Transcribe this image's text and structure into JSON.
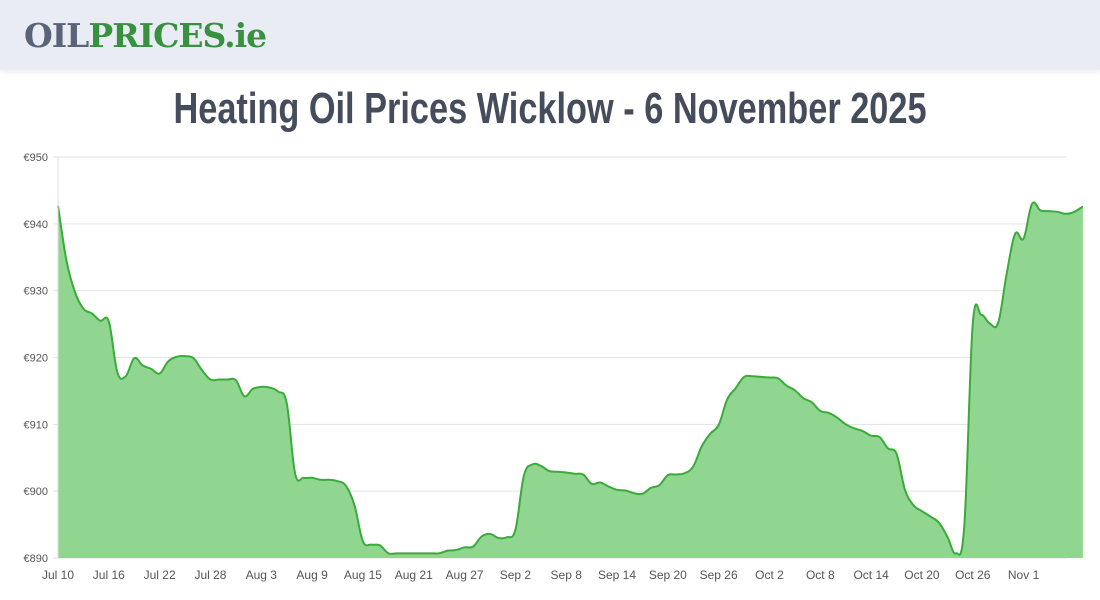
{
  "header": {
    "logo_part1": "OIL",
    "logo_part2": "PRICES.ie"
  },
  "page": {
    "title": "Heating Oil Prices Wicklow - 6 November 2025"
  },
  "colors": {
    "line": "#3aab3a",
    "fill": "#90d690",
    "grid": "#e3e3e3",
    "logo_dark": "#5a6478",
    "logo_green": "#37913f",
    "title": "#454d5c"
  },
  "chart_data": {
    "type": "area",
    "title": "Heating Oil Prices Wicklow - 6 November 2025",
    "xlabel": "",
    "ylabel": "",
    "ylim": [
      890,
      950
    ],
    "yticks": [
      "€890",
      "€900",
      "€910",
      "€920",
      "€930",
      "€940",
      "€950"
    ],
    "ytick_values": [
      890,
      900,
      910,
      920,
      930,
      940,
      950
    ],
    "xtick_labels": [
      "Jul 10",
      "Jul 16",
      "Jul 22",
      "Jul 28",
      "Aug 3",
      "Aug 9",
      "Aug 15",
      "Aug 21",
      "Aug 27",
      "Sep 2",
      "Sep 8",
      "Sep 14",
      "Sep 20",
      "Sep 26",
      "Oct 2",
      "Oct 8",
      "Oct 14",
      "Oct 20",
      "Oct 26",
      "Nov 1"
    ],
    "grid": true,
    "legend": "none",
    "start_date": "Jul 10",
    "end_date": "Nov 6",
    "currency": "€",
    "series": [
      {
        "name": "Heating Oil Price (Wicklow)",
        "values": [
          942.7,
          934.5,
          929.8,
          927.3,
          926.6,
          925.5,
          925.4,
          917.8,
          917.2,
          919.9,
          918.8,
          918.3,
          917.6,
          919.4,
          920.1,
          920.2,
          919.9,
          918.1,
          916.7,
          916.7,
          916.7,
          916.6,
          914.2,
          915.3,
          915.6,
          915.5,
          914.9,
          913.2,
          902.6,
          902.0,
          902.0,
          901.7,
          901.7,
          901.5,
          900.8,
          897.9,
          892.5,
          892.0,
          891.9,
          890.7,
          890.7,
          890.7,
          890.7,
          890.7,
          890.7,
          890.7,
          891.1,
          891.2,
          891.6,
          891.7,
          893.2,
          893.6,
          893.0,
          893.1,
          894.2,
          902.3,
          904.0,
          903.8,
          903.0,
          902.9,
          902.8,
          902.6,
          902.5,
          901.1,
          901.3,
          900.7,
          900.2,
          900.1,
          899.7,
          899.6,
          900.5,
          900.9,
          902.4,
          902.5,
          902.7,
          903.7,
          906.7,
          908.6,
          909.9,
          913.7,
          915.4,
          917.1,
          917.2,
          917.1,
          917.0,
          916.9,
          915.8,
          915.1,
          913.9,
          913.3,
          912.0,
          911.7,
          911.0,
          910.0,
          909.4,
          909.0,
          908.3,
          908.1,
          906.4,
          905.6,
          900.2,
          897.9,
          897.0,
          896.2,
          895.3,
          893.2,
          890.7,
          894.8,
          925.0,
          926.4,
          925.1,
          925.2,
          932.5,
          938.5,
          937.8,
          943.0,
          942.0,
          941.9,
          941.8,
          941.5,
          941.8,
          942.6
        ]
      }
    ]
  }
}
